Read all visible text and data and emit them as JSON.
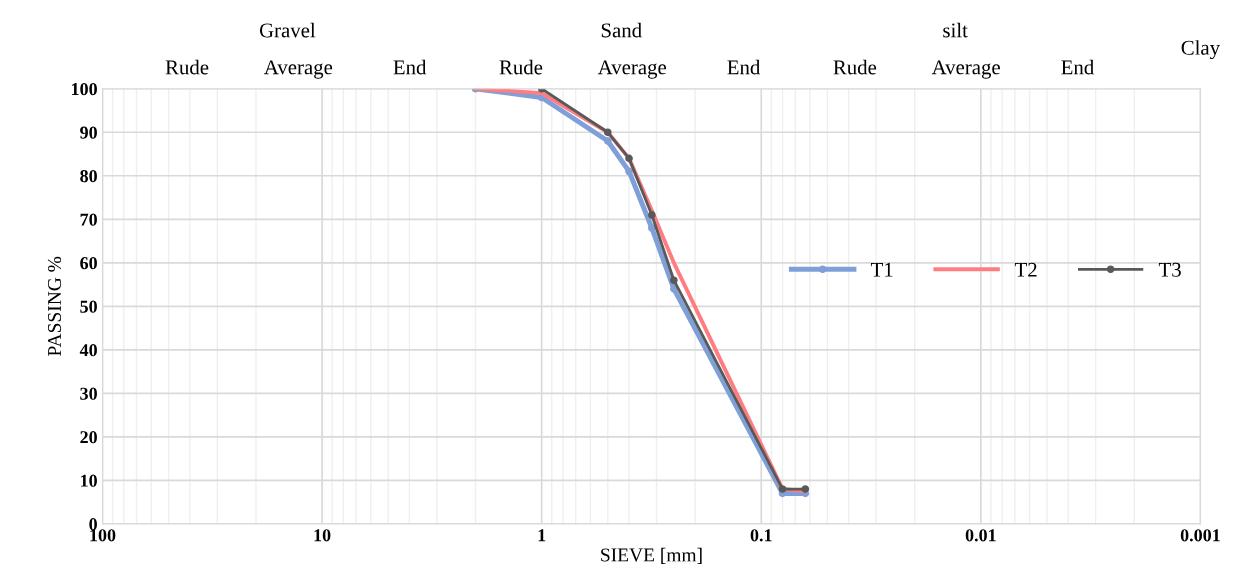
{
  "chart_data": {
    "type": "line",
    "xlabel": "SIEVE [mm]",
    "ylabel": "PASSING %",
    "log": "x",
    "xlim": [
      100,
      0.001
    ],
    "xticks": [
      100,
      10,
      1,
      0.1,
      0.01,
      0.001
    ],
    "ylim": [
      0,
      100
    ],
    "yticks": [
      0,
      10,
      20,
      30,
      40,
      50,
      60,
      70,
      80,
      90,
      100
    ],
    "annotations": [
      "Gravel",
      "Rude",
      "Average",
      "End",
      "Sand",
      "Rude",
      "Average",
      "End",
      "silt",
      "Rude",
      "Average",
      "End",
      "Clay"
    ],
    "grid": true,
    "legend": "right",
    "series": [
      {
        "name": "T1",
        "color": "#7f9fd8",
        "marker": "circle",
        "x": [
          2,
          1,
          0.5,
          0.4,
          0.315,
          0.25,
          0.08,
          0.063
        ],
        "values": [
          100,
          98,
          88,
          81,
          68,
          54,
          7,
          7
        ]
      },
      {
        "name": "T2",
        "color": "#ff7c80",
        "marker": "none",
        "x": [
          2,
          1,
          0.5,
          0.4,
          0.315,
          0.25,
          0.08,
          0.063
        ],
        "values": [
          100,
          99,
          90,
          84,
          72,
          60,
          8,
          7.5
        ]
      },
      {
        "name": "T3",
        "color": "#595959",
        "marker": "circle",
        "x": [
          1,
          0.5,
          0.4,
          0.315,
          0.25,
          0.08,
          0.063
        ],
        "values": [
          100,
          90,
          84,
          71,
          56,
          8,
          8
        ]
      }
    ]
  }
}
